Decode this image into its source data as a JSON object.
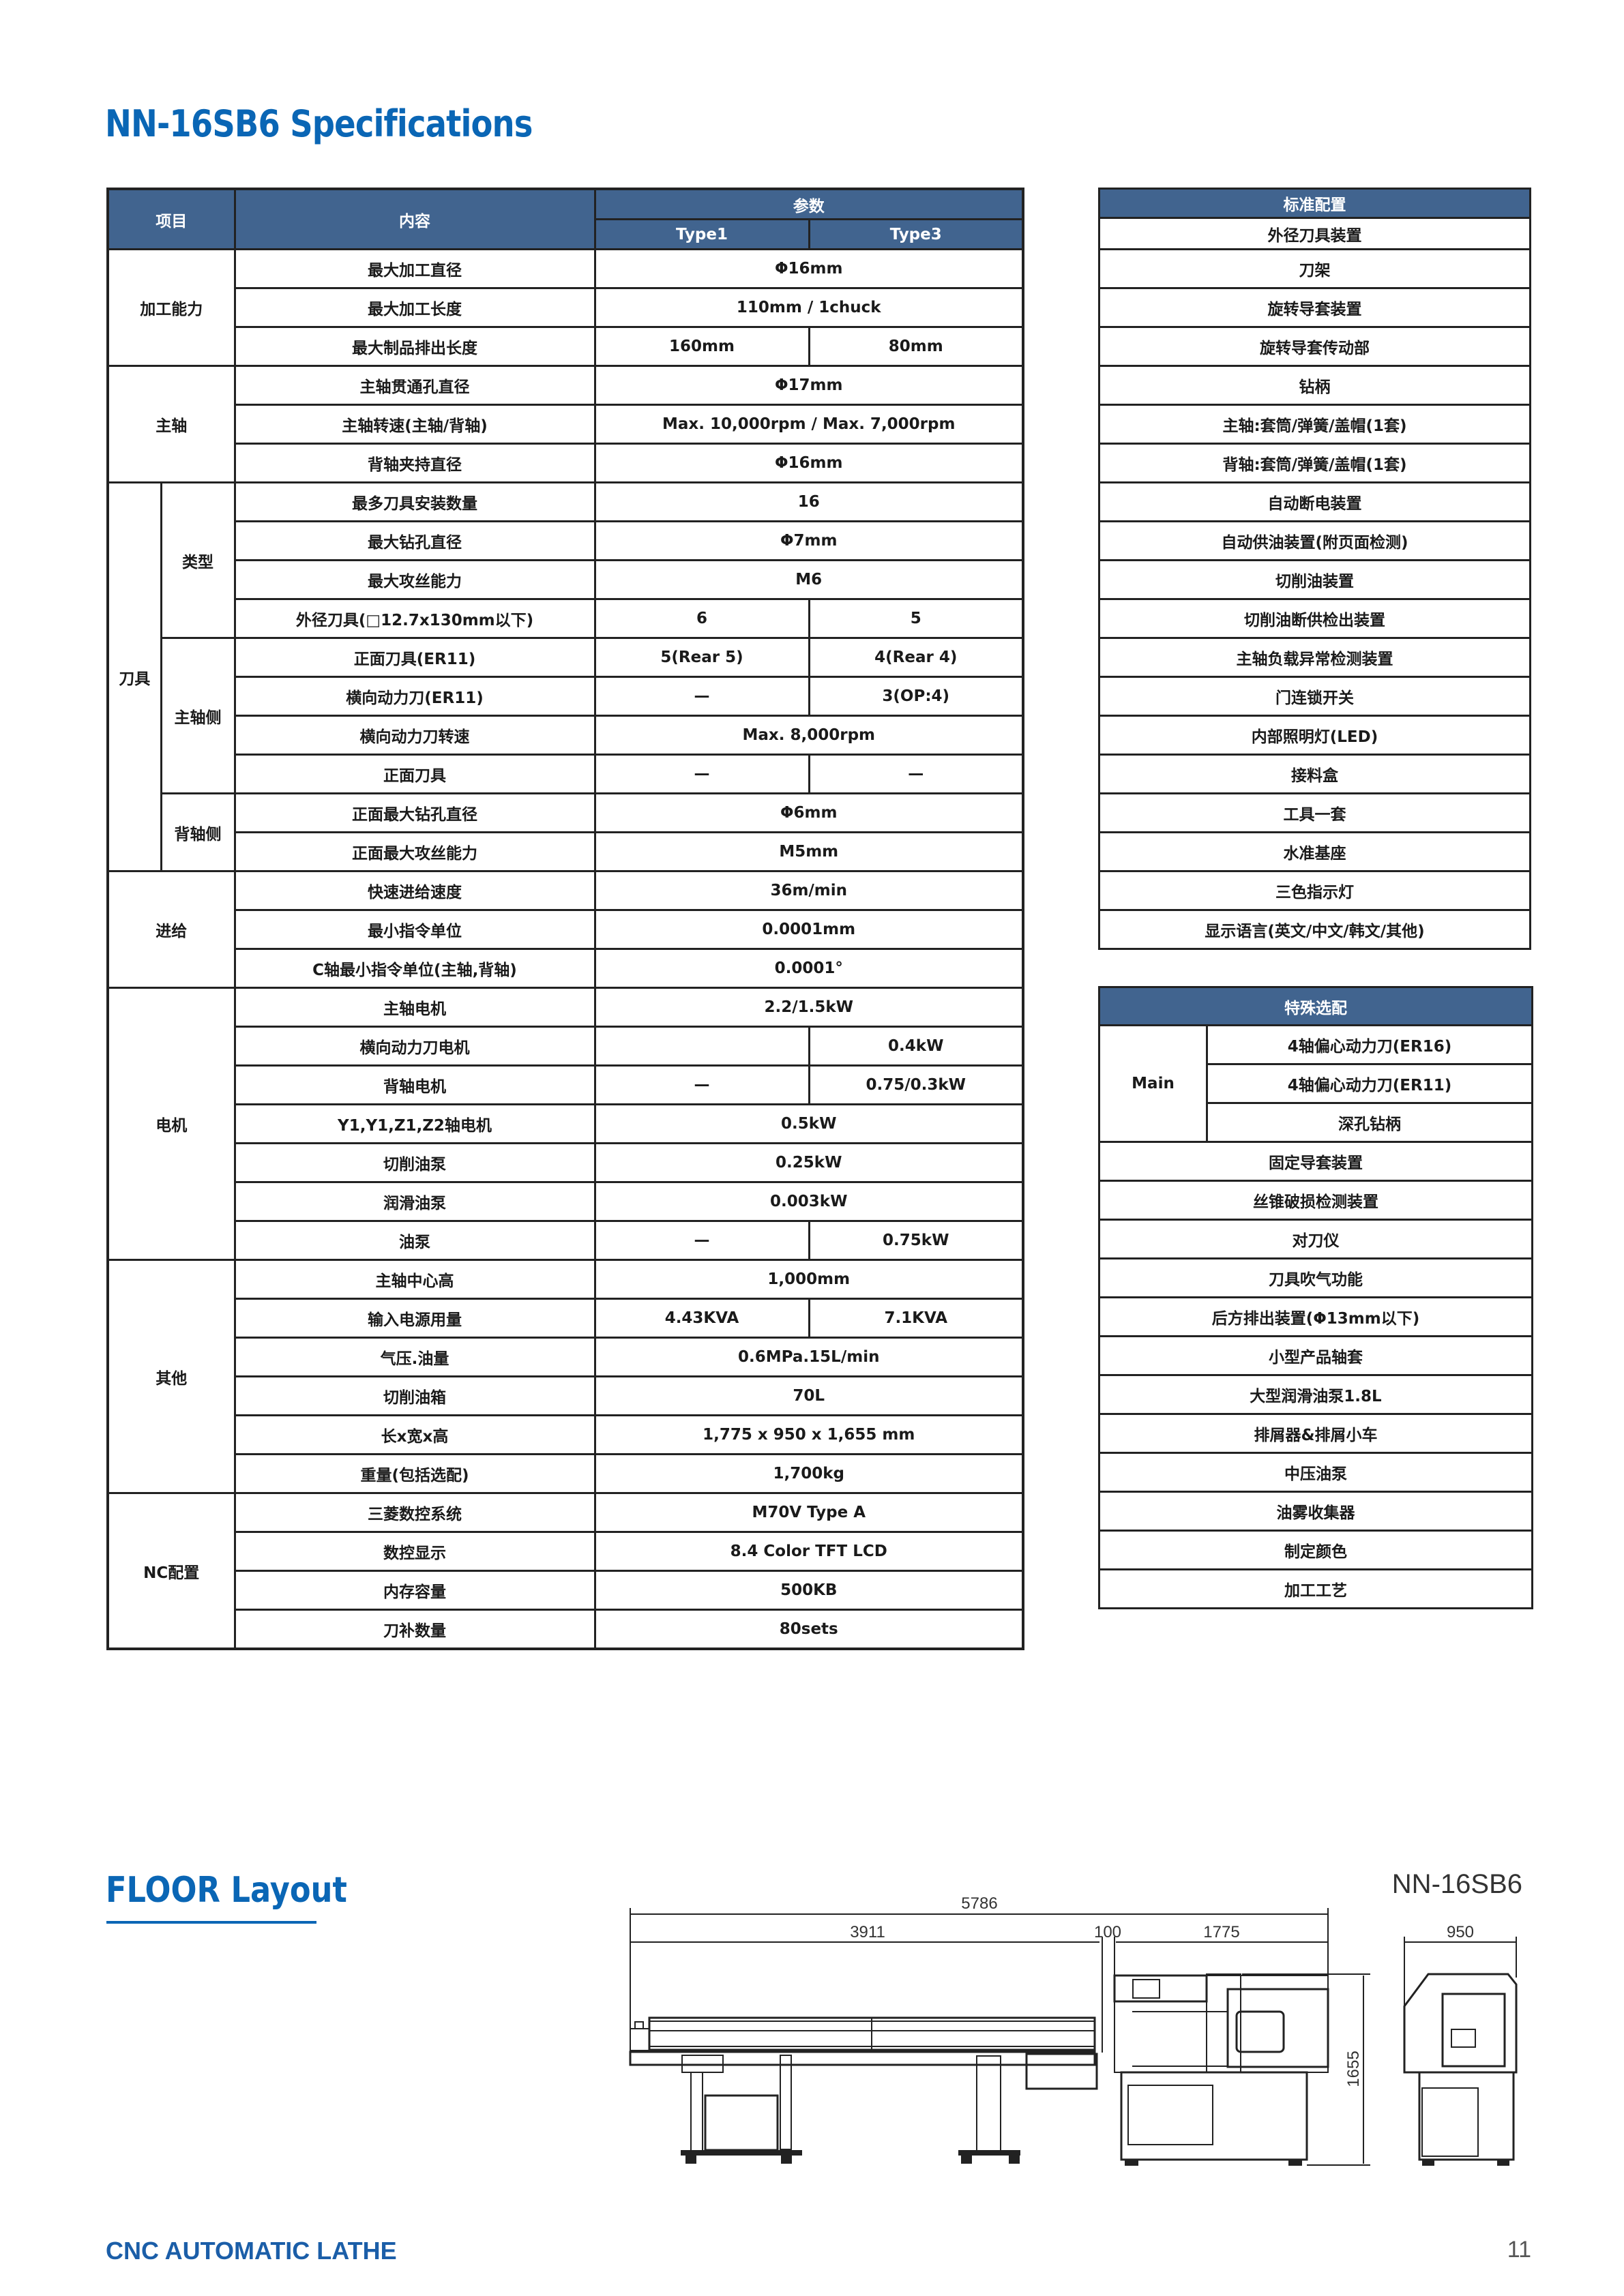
{
  "title": "NN-16SB6 Specifications",
  "main_table": {
    "headers": {
      "item": "项目",
      "content": "内容",
      "params": "参数",
      "type1": "Type1",
      "type3": "Type3"
    },
    "groups": [
      {
        "label": "加工能力",
        "rows": [
          {
            "item": "最大加工直径",
            "values": [
              "Φ16mm"
            ]
          },
          {
            "item": "最大加工长度",
            "values": [
              "110mm / 1chuck"
            ]
          },
          {
            "item": "最大制品排出长度",
            "values": [
              "160mm",
              "80mm"
            ]
          }
        ]
      },
      {
        "label": "主轴",
        "rows": [
          {
            "item": "主轴贯通孔直径",
            "values": [
              "Φ17mm"
            ]
          },
          {
            "item": "主轴转速(主轴/背轴)",
            "values": [
              "Max. 10,000rpm / Max. 7,000rpm"
            ]
          },
          {
            "item": "背轴夹持直径",
            "values": [
              "Φ16mm"
            ]
          }
        ]
      },
      {
        "label": "刀具",
        "subgroups": [
          {
            "label": "类型",
            "rows": [
              {
                "item": "最多刀具安装数量",
                "values": [
                  "16"
                ]
              },
              {
                "item": "最大钻孔直径",
                "values": [
                  "Φ7mm"
                ]
              },
              {
                "item": "最大攻丝能力",
                "values": [
                  "M6"
                ]
              },
              {
                "item": "外径刀具(□12.7x130mm以下)",
                "values": [
                  "6",
                  "5"
                ]
              }
            ]
          },
          {
            "label": "主轴侧",
            "rows": [
              {
                "item": "正面刀具(ER11)",
                "values": [
                  "5(Rear 5)",
                  "4(Rear 4)"
                ]
              },
              {
                "item": "横向动力刀(ER11)",
                "values": [
                  "—",
                  "3(OP:4)"
                ]
              },
              {
                "item": "横向动力刀转速",
                "values": [
                  "Max. 8,000rpm"
                ]
              },
              {
                "item": "正面刀具",
                "values": [
                  "—",
                  "—"
                ]
              }
            ]
          },
          {
            "label": "背轴侧",
            "rows": [
              {
                "item": "正面最大钻孔直径",
                "values": [
                  "Φ6mm"
                ]
              },
              {
                "item": "正面最大攻丝能力",
                "values": [
                  "M5mm"
                ]
              }
            ]
          }
        ]
      },
      {
        "label": "进给",
        "rows": [
          {
            "item": "快速进给速度",
            "values": [
              "36m/min"
            ]
          },
          {
            "item": "最小指令单位",
            "values": [
              "0.0001mm"
            ]
          },
          {
            "item": "C轴最小指令单位(主轴,背轴)",
            "values": [
              "0.0001°"
            ]
          }
        ]
      },
      {
        "label": "电机",
        "rows": [
          {
            "item": "主轴电机",
            "values": [
              "2.2/1.5kW"
            ]
          },
          {
            "item": "横向动力刀电机",
            "values": [
              "",
              "0.4kW"
            ]
          },
          {
            "item": "背轴电机",
            "values": [
              "—",
              "0.75/0.3kW"
            ]
          },
          {
            "item": "Y1,Y1,Z1,Z2轴电机",
            "values": [
              "0.5kW"
            ]
          },
          {
            "item": "切削油泵",
            "values": [
              "0.25kW"
            ]
          },
          {
            "item": "润滑油泵",
            "values": [
              "0.003kW"
            ]
          },
          {
            "item": "油泵",
            "values": [
              "—",
              "0.75kW"
            ]
          }
        ]
      },
      {
        "label": "其他",
        "rows": [
          {
            "item": "主轴中心高",
            "values": [
              "1,000mm"
            ]
          },
          {
            "item": "输入电源用量",
            "values": [
              "4.43KVA",
              "7.1KVA"
            ]
          },
          {
            "item": "气压.油量",
            "values": [
              "0.6MPa.15L/min"
            ]
          },
          {
            "item": "切削油箱",
            "values": [
              "70L"
            ]
          },
          {
            "item": "长x宽x高",
            "values": [
              "1,775 x 950 x 1,655 mm"
            ]
          },
          {
            "item": "重量(包括选配)",
            "values": [
              "1,700kg"
            ]
          }
        ]
      },
      {
        "label": "NC配置",
        "rows": [
          {
            "item": "三菱数控系统",
            "values": [
              "M70V Type A"
            ]
          },
          {
            "item": "数控显示",
            "values": [
              "8.4 Color TFT LCD"
            ]
          },
          {
            "item": "内存容量",
            "values": [
              "500KB"
            ]
          },
          {
            "item": "刀补数量",
            "values": [
              "80sets"
            ]
          }
        ]
      }
    ]
  },
  "standard_config": {
    "header": "标准配置",
    "items": [
      "外径刀具装置",
      "刀架",
      "旋转导套装置",
      "旋转导套传动部",
      "钻柄",
      "主轴:套筒/弹簧/盖帽(1套)",
      "背轴:套筒/弹簧/盖帽(1套)",
      "自动断电装置",
      "自动供油装置(附页面检测)",
      "切削油装置",
      "切削油断供检出装置",
      "主轴负载异常检测装置",
      "门连锁开关",
      "内部照明灯(LED)",
      "接料盒",
      "工具一套",
      "水准基座",
      "三色指示灯",
      "显示语言(英文/中文/韩文/其他)"
    ]
  },
  "special_options": {
    "header": "特殊选配",
    "main_label": "Main",
    "main_items": [
      "4轴偏心动力刀(ER16)",
      "4轴偏心动力刀(ER11)",
      "深孔钻柄"
    ],
    "items": [
      "固定导套装置",
      "丝锥破损检测装置",
      "对刀仪",
      "刀具吹气功能",
      "后方排出装置(Φ13mm以下)",
      "小型产品轴套",
      "大型润滑油泵1.8L",
      "排屑器&排屑小车",
      "中压油泵",
      "油雾收集器",
      "制定颜色",
      "加工工艺"
    ]
  },
  "floor_layout": {
    "title": "FLOOR Layout",
    "model": "NN-16SB6",
    "dimensions": {
      "overall_length": "5786",
      "bar_feeder": "3911",
      "gap": "100",
      "machine_length": "1775",
      "machine_width": "950",
      "machine_height": "1655"
    }
  },
  "footer": {
    "left": "CNC AUTOMATIC LATHE",
    "page": "11"
  },
  "colors": {
    "brand_blue": "#0a66b5",
    "header_bg": "#41648f",
    "grid": "#222222"
  }
}
